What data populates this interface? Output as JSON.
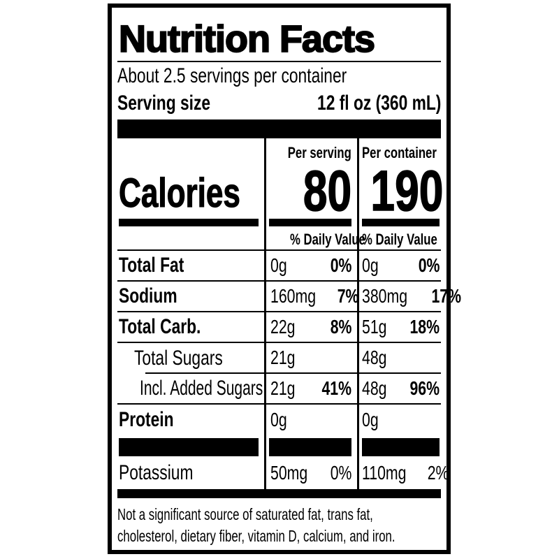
{
  "nutrition_label": {
    "title": "Nutrition Facts",
    "servings_per_container": "About 2.5 servings per container",
    "serving_size": {
      "label": "Serving size",
      "value": "12 fl oz (360 mL)"
    },
    "column_headers": {
      "per_serving": "Per serving",
      "per_container": "Per container"
    },
    "calories": {
      "label": "Calories",
      "per_serving": "80",
      "per_container": "190"
    },
    "daily_value_header_per_serving": "% Daily Value",
    "daily_value_header_per_container": "% Daily Value",
    "nutrient_rows": [
      {
        "name": "Total Fat",
        "per_serving_amount": "0g",
        "per_serving_dv": "0%",
        "per_container_amount": "0g",
        "per_container_dv": "0%"
      },
      {
        "name": "Sodium",
        "per_serving_amount": "160mg",
        "per_serving_dv": "7%",
        "per_container_amount": "380mg",
        "per_container_dv": "17%"
      },
      {
        "name": "Total Carb.",
        "per_serving_amount": "22g",
        "per_serving_dv": "8%",
        "per_container_amount": "51g",
        "per_container_dv": "18%"
      },
      {
        "name": "Total Sugars",
        "per_serving_amount": "21g",
        "per_serving_dv": "",
        "per_container_amount": "48g",
        "per_container_dv": ""
      },
      {
        "name": "Incl. Added Sugars",
        "per_serving_amount": "21g",
        "per_serving_dv": "41%",
        "per_container_amount": "48g",
        "per_container_dv": "96%"
      },
      {
        "name": "Protein",
        "per_serving_amount": "0g",
        "per_serving_dv": "",
        "per_container_amount": "0g",
        "per_container_dv": ""
      },
      {
        "name": "Potassium",
        "per_serving_amount": "50mg",
        "per_serving_dv": "0%",
        "per_container_amount": "110mg",
        "per_container_dv": "2%"
      }
    ],
    "footnote_line1": "Not a significant source of saturated fat, trans fat,",
    "footnote_line2": "cholesterol, dietary fiber, vitamin D, calcium, and iron.",
    "colors": {
      "ink": "#000000",
      "paper": "#ffffff"
    }
  }
}
